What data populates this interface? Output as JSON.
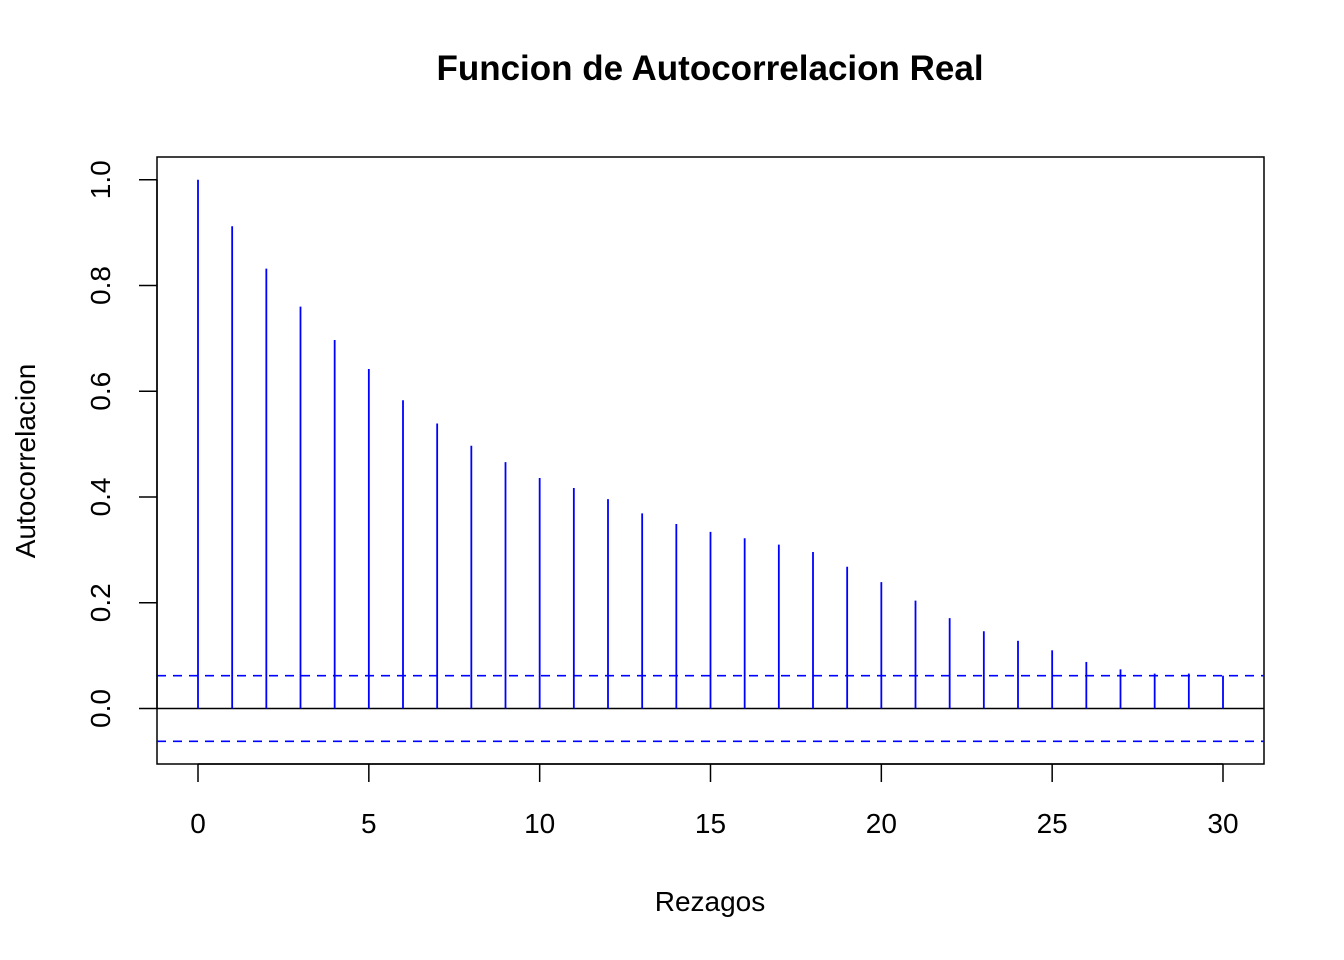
{
  "chart_data": {
    "type": "bar",
    "title": "Funcion de Autocorrelacion Real",
    "xlabel": "Rezagos",
    "ylabel": "Autocorrelacion",
    "x": [
      0,
      1,
      2,
      3,
      4,
      5,
      6,
      7,
      8,
      9,
      10,
      11,
      12,
      13,
      14,
      15,
      16,
      17,
      18,
      19,
      20,
      21,
      22,
      23,
      24,
      25,
      26,
      27,
      28,
      29,
      30
    ],
    "values": [
      1.0,
      0.912,
      0.832,
      0.76,
      0.697,
      0.642,
      0.583,
      0.539,
      0.497,
      0.466,
      0.436,
      0.417,
      0.396,
      0.369,
      0.349,
      0.334,
      0.322,
      0.31,
      0.296,
      0.268,
      0.239,
      0.204,
      0.171,
      0.146,
      0.128,
      0.11,
      0.088,
      0.074,
      0.066,
      0.066,
      0.062
    ],
    "confidence_bounds": [
      0.062,
      -0.062
    ],
    "xlim": [
      -1.2,
      31.2
    ],
    "ylim": [
      -0.105,
      1.043
    ],
    "xticks": [
      "0",
      "5",
      "10",
      "15",
      "20",
      "25",
      "30"
    ],
    "xtick_values": [
      0,
      5,
      10,
      15,
      20,
      25,
      30
    ],
    "yticks": [
      "0.0",
      "0.2",
      "0.4",
      "0.6",
      "0.8",
      "1.0"
    ],
    "ytick_values": [
      0.0,
      0.2,
      0.4,
      0.6,
      0.8,
      1.0
    ],
    "grid": false,
    "colors": {
      "bars": "#0000ff",
      "bounds": "#0000ff",
      "zero_line": "#000000",
      "frame": "#000000"
    }
  }
}
